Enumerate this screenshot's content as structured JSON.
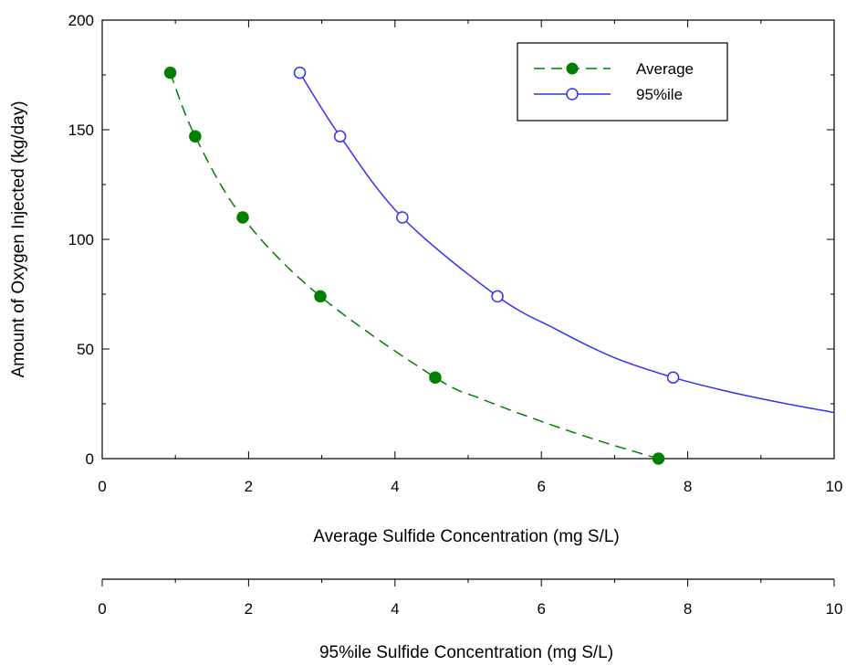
{
  "chart_data": {
    "type": "line",
    "ylabel": "Amount of Oxygen Injected (kg/day)",
    "xlabel": "Average Sulfide Concentration (mg S/L)",
    "x2label": "95%ile Sulfide Concentration (mg S/L)",
    "xlim": [
      0,
      10
    ],
    "ylim": [
      0,
      200
    ],
    "x_ticks": [
      0,
      2,
      4,
      6,
      8,
      10
    ],
    "x2_ticks": [
      0,
      2,
      4,
      6,
      8,
      10
    ],
    "y_ticks": [
      0,
      50,
      100,
      150,
      200
    ],
    "grid": false,
    "legend_position": "top-right",
    "series": [
      {
        "name": "Average",
        "style": "dashed",
        "marker": "filled-circle",
        "color": "#008000",
        "x": [
          0.93,
          1.27,
          1.92,
          2.98,
          4.55,
          7.6
        ],
        "y": [
          176,
          147,
          110,
          74,
          37,
          0
        ],
        "curve_x": [
          0.93,
          1.27,
          1.92,
          2.98,
          4.55,
          5.2,
          6.0,
          6.8,
          7.6
        ],
        "curve_y": [
          176,
          147,
          110,
          74,
          37,
          27,
          17,
          8,
          0
        ]
      },
      {
        "name": "95%ile",
        "style": "solid",
        "marker": "open-circle",
        "color": "#3333ee",
        "x": [
          2.7,
          3.25,
          4.1,
          5.4,
          7.8
        ],
        "y": [
          176,
          147,
          110,
          74,
          37
        ],
        "curve_x": [
          2.7,
          3.25,
          4.1,
          5.4,
          6.2,
          7.0,
          7.8,
          8.5,
          9.2,
          10.0
        ],
        "curve_y": [
          176,
          147,
          110,
          74,
          59,
          46,
          37,
          31,
          26,
          21
        ]
      }
    ]
  }
}
